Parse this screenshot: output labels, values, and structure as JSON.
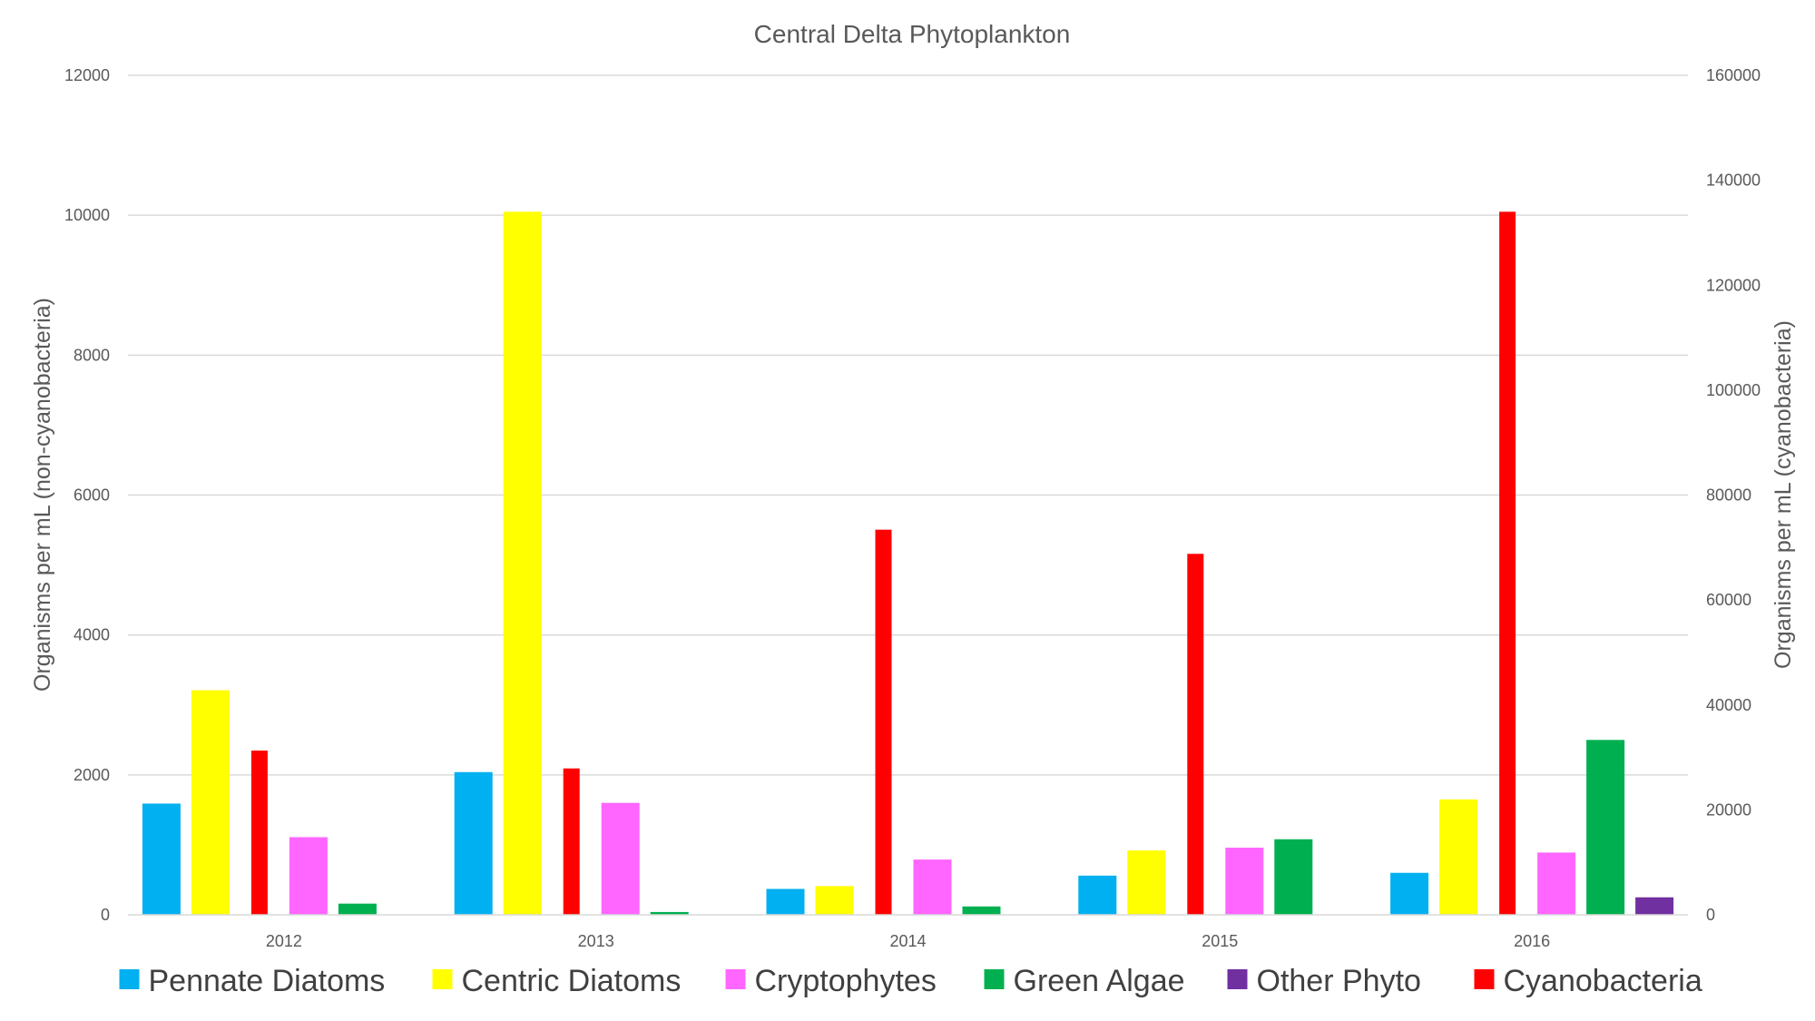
{
  "chart_data": {
    "type": "bar",
    "title": "Central Delta Phytoplankton",
    "categories": [
      "2012",
      "2013",
      "2014",
      "2015",
      "2016"
    ],
    "ylabel": "Organisms per mL (non-cyanobacteria)",
    "y2label": "Organisms per mL (cyanobacteria)",
    "ylim": [
      0,
      12000
    ],
    "y2lim": [
      0,
      160000
    ],
    "yticks": [
      "0",
      "2000",
      "4000",
      "6000",
      "8000",
      "10000",
      "12000"
    ],
    "y2ticks": [
      "0",
      "20000",
      "40000",
      "60000",
      "80000",
      "100000",
      "120000",
      "140000",
      "160000"
    ],
    "grid": true,
    "legend_position": "bottom",
    "series": [
      {
        "name": "Pennate Diatoms",
        "color": "#00b0f0",
        "axis": "left",
        "values": [
          1590,
          2040,
          370,
          560,
          600
        ]
      },
      {
        "name": "Centric Diatoms",
        "color": "#ffff00",
        "axis": "left",
        "values": [
          3210,
          10050,
          410,
          920,
          1650
        ]
      },
      {
        "name": "Cyanobacteria",
        "color": "#ff0000",
        "axis": "right",
        "values": [
          31300,
          27900,
          73400,
          68800,
          134000
        ]
      },
      {
        "name": "Cryptophytes",
        "color": "#ff66ff",
        "axis": "left",
        "values": [
          1110,
          1600,
          790,
          960,
          890
        ]
      },
      {
        "name": "Green Algae",
        "color": "#00b050",
        "axis": "left",
        "values": [
          160,
          40,
          120,
          1080,
          2500
        ]
      },
      {
        "name": "Other Phyto",
        "color": "#7030a0",
        "axis": "left",
        "values": [
          0,
          0,
          0,
          0,
          250
        ]
      }
    ],
    "legend_order": [
      "Pennate Diatoms",
      "Centric Diatoms",
      "Cryptophytes",
      "Green Algae",
      "Other Phyto",
      "Cyanobacteria"
    ]
  }
}
